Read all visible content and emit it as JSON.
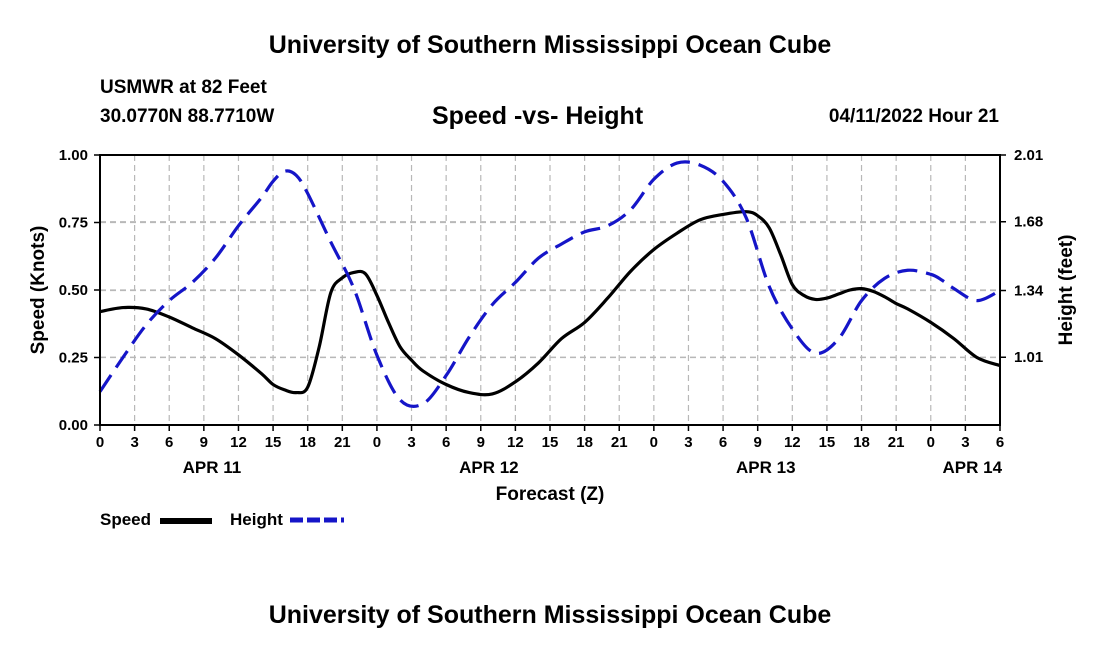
{
  "page": {
    "title_top": "University of Southern Mississippi Ocean Cube",
    "title_bottom": "University of Southern Mississippi Ocean Cube",
    "station": "USMWR at 82 Feet",
    "coords": "30.0770N  88.7710W",
    "datetime": "04/11/2022 Hour 21"
  },
  "legend": {
    "speed_label": "Speed",
    "height_label": "Height"
  },
  "colors": {
    "speed": "#000000",
    "height": "#1515c8",
    "grid": "#b8b8b8"
  },
  "chart_data": {
    "type": "line",
    "title": "Speed -vs- Height",
    "xlabel": "Forecast (Z)",
    "ylabel": "Speed (Knots)",
    "y2label": "Height (feet)",
    "x_unit": "hours since APR 11 00Z",
    "xlim": [
      0,
      78
    ],
    "ylim": [
      0,
      1.0
    ],
    "y2lim": [
      0.675,
      2.01
    ],
    "y_ticks": [
      0.0,
      0.25,
      0.5,
      0.75,
      1.0
    ],
    "y_tick_labels": [
      "0.00",
      "0.25",
      "0.50",
      "0.75",
      "1.00"
    ],
    "y2_ticks": [
      1.01,
      1.34,
      1.68,
      2.01
    ],
    "y2_tick_labels": [
      "1.01",
      "1.34",
      "1.68",
      "2.01"
    ],
    "x_ticks": [
      0,
      3,
      6,
      9,
      12,
      15,
      18,
      21,
      24,
      27,
      30,
      33,
      36,
      39,
      42,
      45,
      48,
      51,
      54,
      57,
      60,
      63,
      66,
      69,
      72,
      75,
      78
    ],
    "x_tick_labels": [
      "0",
      "3",
      "6",
      "9",
      "12",
      "15",
      "18",
      "21",
      "0",
      "3",
      "6",
      "9",
      "12",
      "15",
      "18",
      "21",
      "0",
      "3",
      "6",
      "9",
      "12",
      "15",
      "18",
      "21",
      "0",
      "3",
      "6"
    ],
    "date_labels": [
      {
        "label": "APR 11",
        "x": 9.7
      },
      {
        "label": "APR 12",
        "x": 33.7
      },
      {
        "label": "APR 13",
        "x": 57.7
      },
      {
        "label": "APR 14",
        "x": 75.6
      }
    ],
    "grid": true,
    "series": [
      {
        "name": "Speed",
        "axis": "left",
        "style": "solid",
        "x": [
          0,
          2,
          4,
          6,
          8,
          10,
          12,
          14,
          15,
          16,
          17,
          18,
          19,
          20,
          21,
          22,
          23,
          24,
          25,
          26,
          27,
          28,
          30,
          32,
          34,
          36,
          38,
          40,
          42,
          44,
          46,
          48,
          50,
          52,
          54,
          56,
          57,
          58,
          59,
          60,
          61,
          62,
          63,
          64,
          65,
          66,
          67,
          68,
          69,
          70,
          72,
          74,
          76,
          78
        ],
        "y": [
          0.42,
          0.435,
          0.43,
          0.4,
          0.36,
          0.32,
          0.26,
          0.19,
          0.15,
          0.13,
          0.12,
          0.14,
          0.29,
          0.49,
          0.545,
          0.565,
          0.56,
          0.48,
          0.38,
          0.29,
          0.24,
          0.2,
          0.15,
          0.12,
          0.115,
          0.16,
          0.23,
          0.32,
          0.38,
          0.47,
          0.57,
          0.65,
          0.71,
          0.76,
          0.78,
          0.79,
          0.775,
          0.73,
          0.63,
          0.52,
          0.48,
          0.465,
          0.47,
          0.485,
          0.5,
          0.505,
          0.495,
          0.475,
          0.45,
          0.43,
          0.38,
          0.32,
          0.25,
          0.22
        ]
      },
      {
        "name": "Height",
        "axis": "right",
        "style": "dashed",
        "x": [
          0,
          2,
          4,
          6,
          8,
          10,
          12,
          14,
          15,
          16,
          17,
          18,
          20,
          22,
          24,
          26,
          28,
          30,
          32,
          34,
          36,
          38,
          40,
          42,
          44,
          46,
          48,
          50,
          52,
          54,
          56,
          58,
          60,
          62,
          64,
          66,
          68,
          70,
          72,
          73,
          74,
          76,
          78
        ],
        "y": [
          0.84,
          1.01,
          1.17,
          1.29,
          1.38,
          1.5,
          1.66,
          1.8,
          1.88,
          1.93,
          1.91,
          1.82,
          1.58,
          1.35,
          1.02,
          0.8,
          0.78,
          0.92,
          1.11,
          1.27,
          1.38,
          1.5,
          1.57,
          1.63,
          1.66,
          1.74,
          1.89,
          1.97,
          1.96,
          1.88,
          1.7,
          1.36,
          1.15,
          1.03,
          1.1,
          1.29,
          1.4,
          1.44,
          1.42,
          1.39,
          1.35,
          1.29,
          1.34
        ]
      }
    ]
  }
}
